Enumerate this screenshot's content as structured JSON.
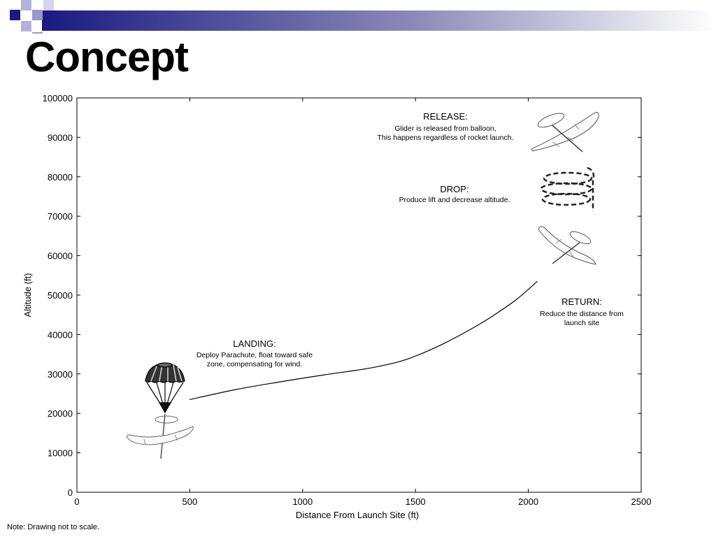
{
  "slide": {
    "title": "Concept",
    "footnote": "Note: Drawing not to scale.",
    "theme_colors": {
      "band_dark": "#1a1a80",
      "band_light": "#ffffff",
      "squares": "#9999cc"
    }
  },
  "chart_data": {
    "type": "line",
    "title": "",
    "xlabel": "Distance From Launch Site (ft)",
    "ylabel": "Altitude (ft)",
    "xlim": [
      0,
      2500
    ],
    "ylim": [
      0,
      100000
    ],
    "x_ticks": [
      0,
      500,
      1000,
      1500,
      2000,
      2500
    ],
    "y_ticks": [
      0,
      10000,
      20000,
      30000,
      40000,
      50000,
      60000,
      70000,
      80000,
      90000,
      100000
    ],
    "grid": false,
    "series": [
      {
        "x": [
          500,
          700,
          900,
          1100,
          1300,
          1450,
          1600,
          1750,
          1850,
          1950,
          2040
        ],
        "y": [
          23500,
          26000,
          28000,
          29800,
          31500,
          33500,
          37000,
          41500,
          45000,
          49000,
          53500
        ]
      }
    ],
    "annotations": [
      {
        "id": "release",
        "heading": "RELEASE:",
        "lines": [
          "Glider is released from balloon,",
          "This happens regardless of rocket launch."
        ]
      },
      {
        "id": "drop",
        "heading": "DROP:",
        "lines": [
          "Produce lift and decrease altitude."
        ]
      },
      {
        "id": "return",
        "heading": "RETURN:",
        "lines": [
          "Reduce the distance from",
          "launch site"
        ]
      },
      {
        "id": "landing",
        "heading": "LANDING:",
        "lines": [
          "Deploy Parachute, float toward safe",
          "zone, compensating for wind."
        ]
      }
    ],
    "illustrations": [
      "glider-release-icon",
      "spiral-descent-icon",
      "glider-return-icon",
      "parachute-icon",
      "glider-landing-icon"
    ]
  }
}
